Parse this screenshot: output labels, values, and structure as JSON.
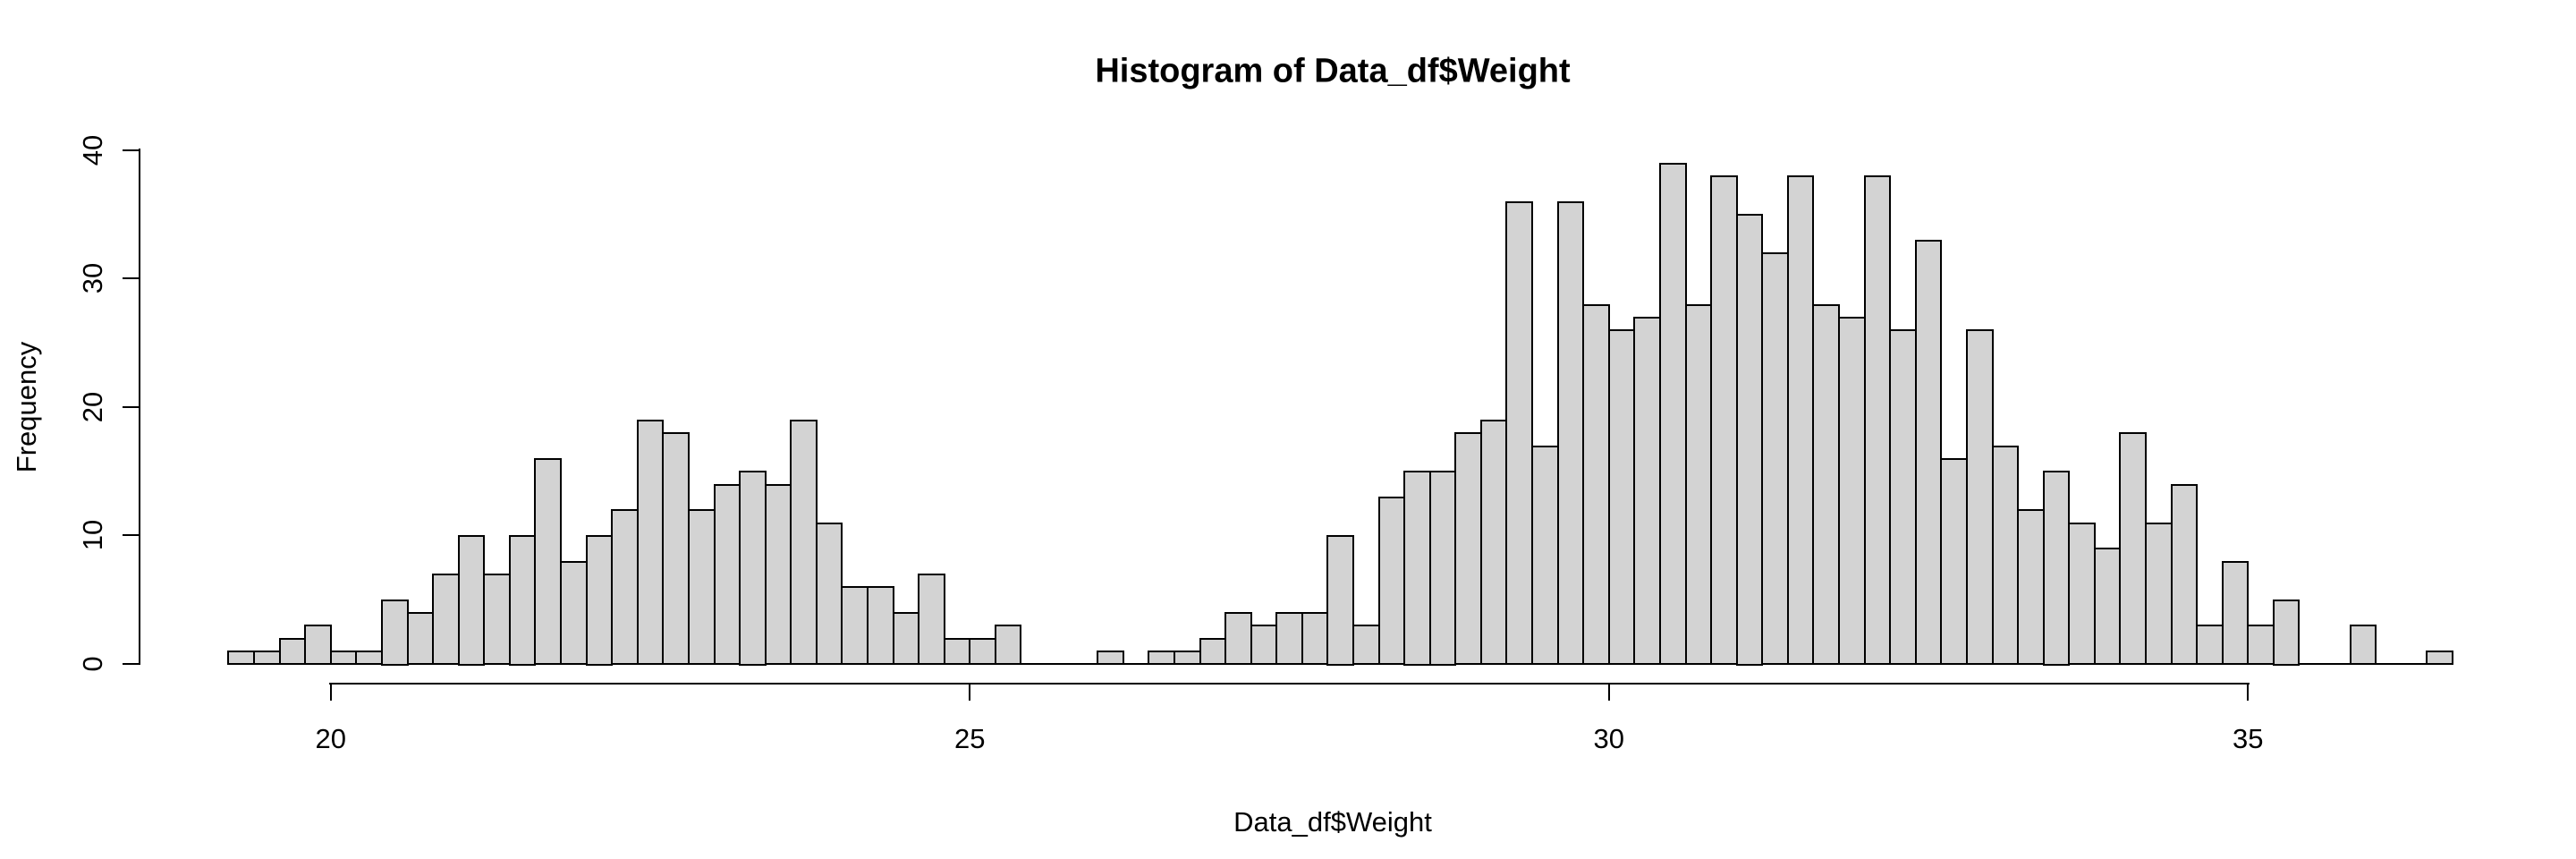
{
  "title": "Histogram of Data_df$Weight",
  "x_axis": {
    "label": "Data_df$Weight",
    "ticks": [
      20,
      25,
      30,
      35
    ]
  },
  "y_axis": {
    "label": "Frequency",
    "ticks": [
      0,
      10,
      20,
      30,
      40
    ]
  },
  "colors": {
    "bar_fill": "#d3d3d3",
    "bar_border": "#000000",
    "axis": "#000000",
    "text": "#000000",
    "background": "#ffffff"
  },
  "chart_data": {
    "type": "bar",
    "subtype": "histogram",
    "title": "Histogram of Data_df$Weight",
    "xlabel": "Data_df$Weight",
    "ylabel": "Frequency",
    "bin_start": 19.2,
    "bin_width": 0.2,
    "xlim": [
      18.5,
      37.3
    ],
    "ylim": [
      0,
      40
    ],
    "grid": false,
    "legend": false,
    "counts": [
      1,
      1,
      2,
      3,
      1,
      1,
      5,
      4,
      7,
      10,
      7,
      10,
      16,
      8,
      10,
      12,
      19,
      18,
      12,
      14,
      15,
      14,
      19,
      11,
      6,
      6,
      4,
      7,
      2,
      2,
      3,
      0,
      0,
      0,
      1,
      0,
      1,
      1,
      2,
      4,
      3,
      4,
      4,
      10,
      3,
      13,
      15,
      15,
      18,
      19,
      36,
      17,
      36,
      28,
      26,
      27,
      39,
      28,
      38,
      35,
      32,
      38,
      28,
      27,
      38,
      26,
      33,
      16,
      26,
      17,
      12,
      15,
      11,
      9,
      18,
      11,
      14,
      3,
      8,
      3,
      5,
      0,
      0,
      3,
      0,
      0,
      1
    ]
  }
}
